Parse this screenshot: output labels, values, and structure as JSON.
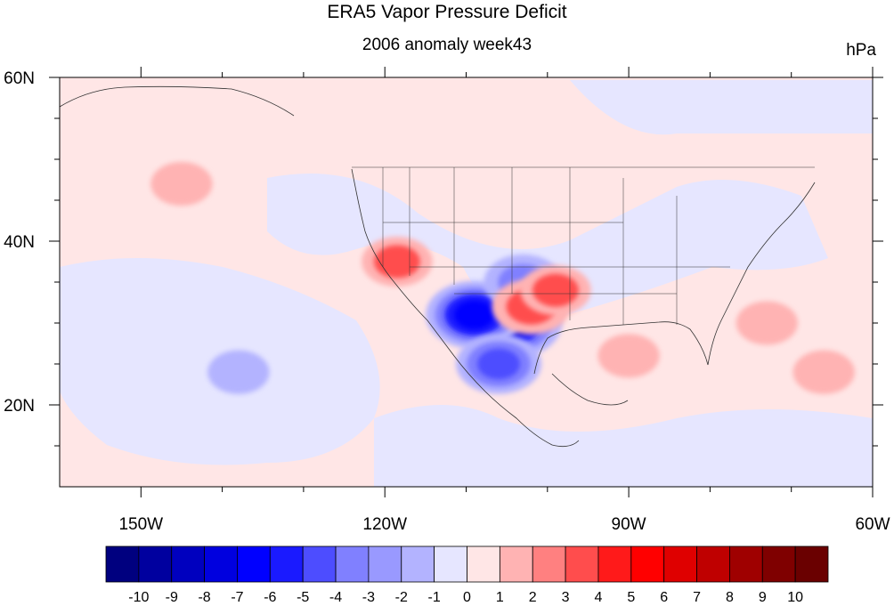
{
  "title": "ERA5 Vapor Pressure Deficit",
  "subtitle": "2006 anomaly week43",
  "units": "hPa",
  "chart_data": {
    "type": "heatmap",
    "title": "ERA5 Vapor Pressure Deficit",
    "subtitle": "2006 anomaly week43",
    "units": "hPa",
    "xlim": [
      -160,
      -60
    ],
    "ylim": [
      10,
      60
    ],
    "x_ticks": [
      {
        "value": -150,
        "label": "150W"
      },
      {
        "value": -120,
        "label": "120W"
      },
      {
        "value": -90,
        "label": "90W"
      },
      {
        "value": -60,
        "label": "60W"
      }
    ],
    "y_ticks": [
      {
        "value": 20,
        "label": "20N"
      },
      {
        "value": 40,
        "label": "40N"
      },
      {
        "value": 60,
        "label": "60N"
      }
    ],
    "colorbar": {
      "levels": [
        -10,
        -9,
        -8,
        -7,
        -6,
        -5,
        -4,
        -3,
        -2,
        -1,
        0,
        1,
        2,
        3,
        4,
        5,
        6,
        7,
        8,
        9,
        10
      ],
      "labels": [
        "-10",
        "-9",
        "-8",
        "-7",
        "-6",
        "-5",
        "-4",
        "-3",
        "-2",
        "-1",
        "0",
        "1",
        "2",
        "3",
        "4",
        "5",
        "6",
        "7",
        "8",
        "9",
        "10"
      ],
      "colors": [
        "#00007f",
        "#00009f",
        "#0000bf",
        "#0000df",
        "#0000ff",
        "#1a1aff",
        "#4d4dff",
        "#8080ff",
        "#9999ff",
        "#b3b3ff",
        "#e6e6ff",
        "#ffe6e6",
        "#ffb3b3",
        "#ff8080",
        "#ff4d4d",
        "#ff1a1a",
        "#ff0000",
        "#df0000",
        "#bf0000",
        "#9f0000",
        "#7f0000",
        "#6a0000"
      ]
    },
    "anomaly_regions": [
      {
        "lon": -104.5,
        "lat": 30,
        "value": -8
      },
      {
        "lon": -109,
        "lat": 31,
        "value": -7
      },
      {
        "lon": -106,
        "lat": 25,
        "value": -5
      },
      {
        "lon": -103,
        "lat": 35,
        "value": -4
      },
      {
        "lon": -138,
        "lat": 24,
        "value": -2
      },
      {
        "lon": -102,
        "lat": 32,
        "value": 4
      },
      {
        "lon": -99,
        "lat": 34,
        "value": 3
      },
      {
        "lon": -118.5,
        "lat": 37.5,
        "value": 3
      },
      {
        "lon": -73,
        "lat": 30,
        "value": 2
      },
      {
        "lon": -90,
        "lat": 26,
        "value": 2
      },
      {
        "lon": -145,
        "lat": 47,
        "value": 2
      },
      {
        "lon": -66,
        "lat": 24,
        "value": 2
      }
    ]
  }
}
